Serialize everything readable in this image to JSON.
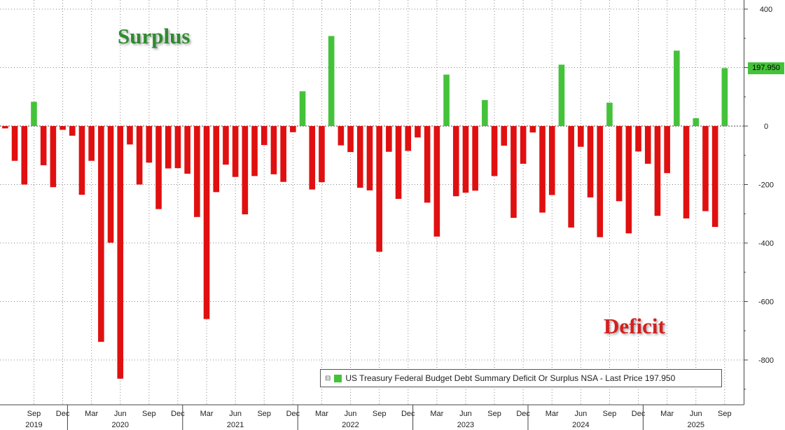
{
  "colors": {
    "positive": "#44c23a",
    "negative": "#e01010",
    "surplus_text": "#2e8b2e",
    "deficit_text": "#d42020"
  },
  "annotations": {
    "surplus": "Surplus",
    "deficit": "Deficit"
  },
  "legend": {
    "toggle": "⊟",
    "text": "US Treasury Federal Budget Debt Summary Deficit Or Surplus NSA - Last Price 197.950"
  },
  "last_price_label": "197.950",
  "chart_data": {
    "type": "bar",
    "title": "",
    "xlabel": "",
    "ylabel": "",
    "ylim": [
      -940,
      410
    ],
    "grid": true,
    "legend_position": "bottom-right",
    "y_ticks": [
      400,
      200,
      0,
      -200,
      -400,
      -600,
      -800
    ],
    "x_ticks": [
      {
        "label": "Sep",
        "year": "2019"
      },
      {
        "label": "Dec",
        "year": ""
      },
      {
        "label": "Mar",
        "year": ""
      },
      {
        "label": "Jun",
        "year": "2020"
      },
      {
        "label": "Sep",
        "year": ""
      },
      {
        "label": "Dec",
        "year": ""
      },
      {
        "label": "Mar",
        "year": ""
      },
      {
        "label": "Jun",
        "year": "2021"
      },
      {
        "label": "Sep",
        "year": ""
      },
      {
        "label": "Dec",
        "year": ""
      },
      {
        "label": "Mar",
        "year": ""
      },
      {
        "label": "Jun",
        "year": "2022"
      },
      {
        "label": "Sep",
        "year": ""
      },
      {
        "label": "Dec",
        "year": ""
      },
      {
        "label": "Mar",
        "year": ""
      },
      {
        "label": "Jun",
        "year": "2023"
      },
      {
        "label": "Sep",
        "year": ""
      },
      {
        "label": "Dec",
        "year": ""
      },
      {
        "label": "Mar",
        "year": ""
      },
      {
        "label": "Jun",
        "year": "2024"
      },
      {
        "label": "Sep",
        "year": ""
      },
      {
        "label": "Dec",
        "year": ""
      },
      {
        "label": "Mar",
        "year": ""
      },
      {
        "label": "Jun",
        "year": "2025"
      },
      {
        "label": "Sep",
        "year": ""
      }
    ],
    "categories": [
      "2019-06",
      "2019-07",
      "2019-08",
      "2019-09",
      "2019-10",
      "2019-11",
      "2019-12",
      "2020-01",
      "2020-02",
      "2020-03",
      "2020-04",
      "2020-05",
      "2020-06",
      "2020-07",
      "2020-08",
      "2020-09",
      "2020-10",
      "2020-11",
      "2020-12",
      "2021-01",
      "2021-02",
      "2021-03",
      "2021-04",
      "2021-05",
      "2021-06",
      "2021-07",
      "2021-08",
      "2021-09",
      "2021-10",
      "2021-11",
      "2021-12",
      "2022-01",
      "2022-02",
      "2022-03",
      "2022-04",
      "2022-05",
      "2022-06",
      "2022-07",
      "2022-08",
      "2022-09",
      "2022-10",
      "2022-11",
      "2022-12",
      "2023-01",
      "2023-02",
      "2023-03",
      "2023-04",
      "2023-05",
      "2023-06",
      "2023-07",
      "2023-08",
      "2023-09",
      "2023-10",
      "2023-11",
      "2023-12",
      "2024-01",
      "2024-02",
      "2024-03",
      "2024-04",
      "2024-05",
      "2024-06",
      "2024-07",
      "2024-08",
      "2024-09",
      "2024-10",
      "2024-11",
      "2024-12",
      "2025-01",
      "2025-02",
      "2025-03",
      "2025-04",
      "2025-05",
      "2025-06",
      "2025-07",
      "2025-08",
      "2025-09"
    ],
    "values": [
      -8,
      -119,
      -200,
      83,
      -134,
      -209,
      -13,
      -33,
      -235,
      -119,
      -738,
      -399,
      -864,
      -63,
      -200,
      -125,
      -284,
      -145,
      -144,
      -163,
      -311,
      -660,
      -226,
      -132,
      -174,
      -302,
      -171,
      -65,
      -165,
      -191,
      -21,
      119,
      -217,
      -192,
      308,
      -66,
      -89,
      -211,
      -220,
      -430,
      -88,
      -249,
      -85,
      -39,
      -262,
      -378,
      176,
      -240,
      -228,
      -221,
      89,
      -171,
      -67,
      -314,
      -129,
      -22,
      -296,
      -236,
      210,
      -347,
      -71,
      -244,
      -380,
      80,
      -257,
      -367,
      -87,
      -129,
      -307,
      -161,
      258,
      -316,
      27,
      -291,
      -345,
      198
    ]
  }
}
